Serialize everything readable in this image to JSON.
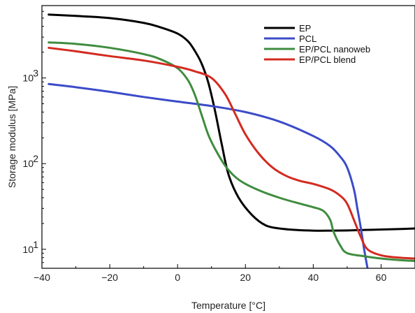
{
  "chart_data": {
    "type": "line",
    "title": "",
    "xlabel": "Temperature [°C]",
    "ylabel": "Storage modulus [MPa]",
    "xlim": [
      -40,
      70
    ],
    "ylim": [
      6,
      7000
    ],
    "yscale": "log",
    "x_ticks": [
      -40,
      -20,
      0,
      20,
      40,
      60
    ],
    "x_tick_labels": [
      "−40",
      "−20",
      "0",
      "20",
      "40",
      "60"
    ],
    "y_ticks": [
      {
        "value": 10,
        "base": "10",
        "exp": "1"
      },
      {
        "value": 100,
        "base": "10",
        "exp": "2"
      },
      {
        "value": 1000,
        "base": "10",
        "exp": "3"
      }
    ],
    "grid": false,
    "legend_position": "top-right",
    "series": [
      {
        "name": "EP",
        "color": "#000000",
        "x": [
          -38,
          -30,
          -20,
          -10,
          -5,
          0,
          3,
          5,
          7,
          9,
          11,
          13,
          15,
          18,
          22,
          26,
          30,
          35,
          40,
          45,
          50,
          55,
          60,
          65,
          70
        ],
        "y": [
          5500,
          5300,
          5000,
          4400,
          3900,
          3300,
          2700,
          2100,
          1500,
          900,
          420,
          170,
          75,
          40,
          25,
          19,
          17.5,
          16.8,
          16.5,
          16.5,
          16.6,
          16.8,
          17.0,
          17.2,
          17.5
        ]
      },
      {
        "name": "PCL",
        "color": "#3b4bc8",
        "x": [
          -38,
          -30,
          -20,
          -10,
          0,
          10,
          20,
          30,
          40,
          45,
          48,
          50,
          52,
          53,
          54,
          55,
          56
        ],
        "y": [
          850,
          780,
          690,
          600,
          530,
          470,
          400,
          310,
          210,
          160,
          120,
          90,
          50,
          30,
          18,
          10,
          6
        ]
      },
      {
        "name": "EP/PCL nanoweb",
        "color": "#3f8c3f",
        "x": [
          -38,
          -30,
          -20,
          -10,
          -5,
          0,
          3,
          5,
          7,
          9,
          11,
          14,
          17,
          20,
          25,
          30,
          35,
          40,
          43,
          45,
          46,
          48,
          50,
          55,
          60,
          65,
          70
        ],
        "y": [
          2600,
          2500,
          2250,
          1900,
          1650,
          1300,
          950,
          650,
          380,
          220,
          150,
          95,
          70,
          58,
          47,
          40,
          35,
          31,
          28,
          22,
          16,
          11,
          9,
          8.3,
          7.8,
          7.5,
          7.3
        ]
      },
      {
        "name": "EP/PCL blend",
        "color": "#d42a20",
        "x": [
          -38,
          -30,
          -20,
          -10,
          0,
          5,
          10,
          14,
          17,
          20,
          24,
          28,
          32,
          36,
          40,
          45,
          48,
          50,
          52,
          54,
          56,
          60,
          65,
          70
        ],
        "y": [
          2250,
          2050,
          1800,
          1600,
          1350,
          1200,
          1000,
          650,
          380,
          220,
          130,
          90,
          72,
          63,
          58,
          50,
          42,
          34,
          22,
          14,
          10,
          8.5,
          8.0,
          7.8
        ]
      }
    ]
  }
}
